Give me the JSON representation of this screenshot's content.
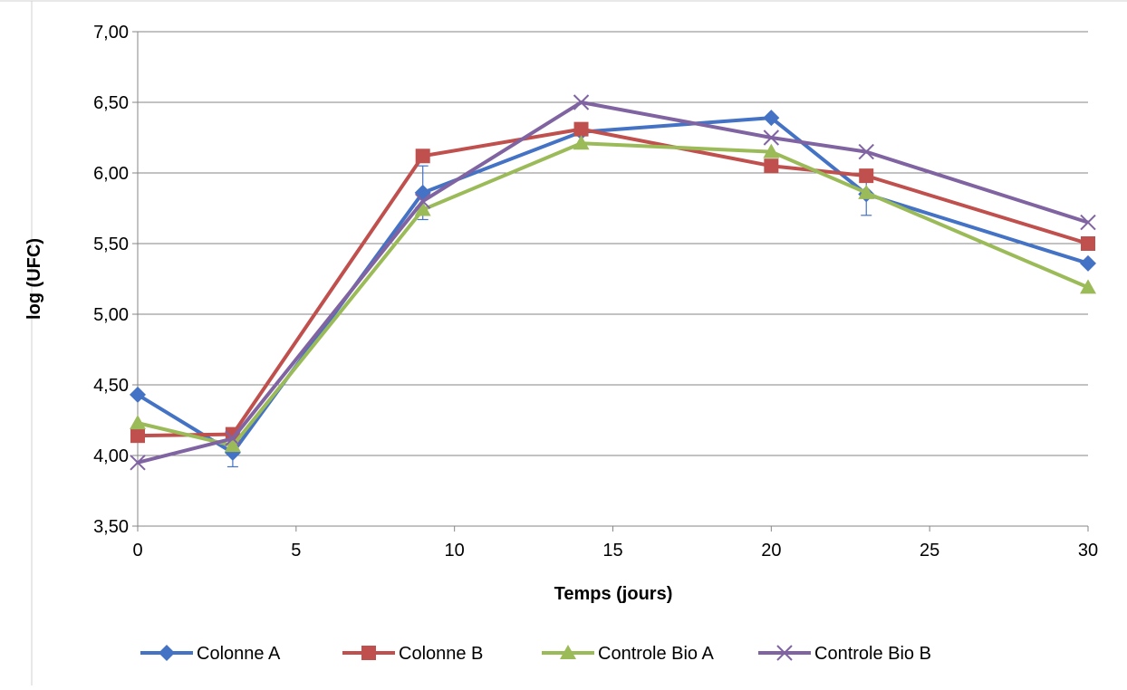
{
  "chart_data": {
    "type": "line",
    "title": "",
    "xlabel": "Temps (jours)",
    "ylabel": "log (UFC)",
    "xlim": [
      0,
      30
    ],
    "ylim": [
      3.5,
      7.0
    ],
    "x_ticks": [
      "0",
      "5",
      "10",
      "15",
      "20",
      "25",
      "30"
    ],
    "x_tick_values": [
      0,
      5,
      10,
      15,
      20,
      25,
      30
    ],
    "y_ticks": [
      "3,50",
      "4,00",
      "4,50",
      "5,00",
      "5,50",
      "6,00",
      "6,50",
      "7,00"
    ],
    "y_tick_values": [
      3.5,
      4.0,
      4.5,
      5.0,
      5.5,
      6.0,
      6.5,
      7.0
    ],
    "grid": true,
    "legend_position": "bottom",
    "x": [
      0,
      3,
      9,
      14,
      20,
      23,
      30
    ],
    "series": [
      {
        "name": "Colonne A",
        "color": "#4472C4",
        "marker": "diamond",
        "values": [
          4.43,
          4.02,
          5.86,
          6.29,
          6.39,
          5.85,
          5.36
        ],
        "error": [
          0.0,
          0.1,
          0.19,
          0.0,
          0.0,
          0.15,
          0.0
        ]
      },
      {
        "name": "Colonne B",
        "color": "#C0504D",
        "marker": "square",
        "values": [
          4.14,
          4.15,
          6.12,
          6.31,
          6.05,
          5.98,
          5.5
        ],
        "error": [
          0.0,
          0.0,
          0.0,
          0.0,
          0.0,
          0.0,
          0.0
        ]
      },
      {
        "name": "Controle Bio A",
        "color": "#9BBB59",
        "marker": "triangle",
        "values": [
          4.23,
          4.07,
          5.74,
          6.21,
          6.15,
          5.86,
          5.19
        ],
        "error": [
          0.0,
          0.0,
          0.0,
          0.0,
          0.0,
          0.0,
          0.0
        ]
      },
      {
        "name": "Controle Bio B",
        "color": "#8064A2",
        "marker": "x",
        "values": [
          3.95,
          4.12,
          5.8,
          6.5,
          6.25,
          6.15,
          5.65
        ],
        "error": [
          0.0,
          0.0,
          0.0,
          0.0,
          0.0,
          0.0,
          0.0
        ]
      }
    ]
  }
}
